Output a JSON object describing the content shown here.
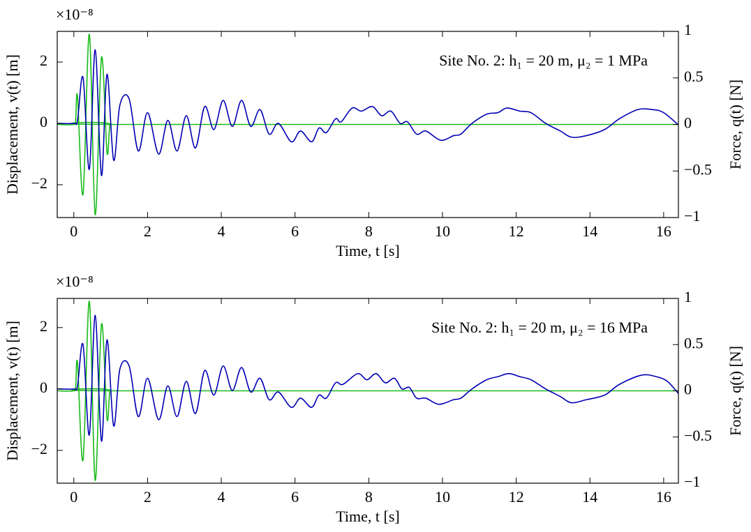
{
  "chart_data": [
    {
      "type": "line",
      "y_multiplier": "×10⁻⁸",
      "annotation": "Site No. 2: h₁ = 20 m, μ₂ = 1 MPa",
      "xlabel": "Time, t [s]",
      "ylabel": "Displacement, v(t) [m]",
      "y2label": "Force, q(t) [N]",
      "xlim": [
        -0.45,
        16.4
      ],
      "xticks": [
        0,
        2,
        4,
        6,
        8,
        10,
        12,
        14,
        16
      ],
      "ylim": [
        -3.07,
        3.0
      ],
      "yticks": [
        {
          "value": -2,
          "label": "−2"
        },
        0,
        2
      ],
      "y2lim": [
        -1,
        1
      ],
      "y2ticks": [
        {
          "value": -1,
          "label": "−1"
        },
        {
          "value": -0.5,
          "label": "−0.5"
        },
        0,
        0.5,
        1
      ],
      "series": [
        {
          "color": "#1aba1a",
          "axis": "y2",
          "x": [
            -0.45,
            0.0,
            0.05,
            0.1,
            0.25,
            0.42,
            0.58,
            0.75,
            0.9,
            0.98,
            1.1,
            16.4
          ],
          "values": [
            0,
            0,
            0.05,
            0.3,
            -0.75,
            0.97,
            -0.97,
            0.72,
            -0.3,
            0,
            0,
            0
          ]
        },
        {
          "color": "#0000b4",
          "x": [
            -0.45,
            0.0,
            0.1,
            0.25,
            0.42,
            0.58,
            0.75,
            0.9,
            1.08,
            1.25,
            1.5,
            1.75,
            2.0,
            2.3,
            2.55,
            2.8,
            3.05,
            3.3,
            3.55,
            3.8,
            4.05,
            4.3,
            4.55,
            4.8,
            5.05,
            5.3,
            5.55,
            5.9,
            6.15,
            6.45,
            6.65,
            6.85,
            7.1,
            7.25,
            7.55,
            7.8,
            8.1,
            8.35,
            8.6,
            8.85,
            9.05,
            9.3,
            9.55,
            9.95,
            10.3,
            10.5,
            10.8,
            11.2,
            11.5,
            11.75,
            12.1,
            12.4,
            12.8,
            13.2,
            13.5,
            13.9,
            14.4,
            14.8,
            15.3,
            15.7,
            16.0,
            16.4
          ],
          "values": [
            0,
            0,
            0.1,
            1.5,
            -1.5,
            2.4,
            -1.7,
            1.6,
            -1.2,
            0.6,
            0.8,
            -0.9,
            0.35,
            -1.0,
            0.1,
            -0.9,
            0.25,
            -0.8,
            0.55,
            -0.2,
            0.75,
            -0.1,
            0.75,
            -0.1,
            0.45,
            -0.35,
            0.0,
            -0.6,
            -0.25,
            -0.6,
            -0.15,
            -0.3,
            0.15,
            0.05,
            0.5,
            0.4,
            0.55,
            0.25,
            0.4,
            0.0,
            0.05,
            -0.35,
            -0.25,
            -0.55,
            -0.4,
            -0.35,
            0.0,
            0.3,
            0.35,
            0.5,
            0.4,
            0.35,
            0.0,
            -0.25,
            -0.45,
            -0.4,
            -0.2,
            0.15,
            0.45,
            0.45,
            0.35,
            -0.05
          ]
        }
      ]
    },
    {
      "type": "line",
      "y_multiplier": "×10⁻⁸",
      "annotation": "Site No. 2: h₁ = 20 m, μ₂ = 16 MPa",
      "xlabel": "Time, t [s]",
      "ylabel": "Displacement, v(t) [m]",
      "y2label": "Force, q(t) [N]",
      "xlim": [
        -0.45,
        16.4
      ],
      "xticks": [
        0,
        2,
        4,
        6,
        8,
        10,
        12,
        14,
        16
      ],
      "ylim": [
        -3.07,
        2.95
      ],
      "yticks": [
        {
          "value": -2,
          "label": "−2"
        },
        0,
        2
      ],
      "y2lim": [
        -1,
        1
      ],
      "y2ticks": [
        {
          "value": -1,
          "label": "−1"
        },
        {
          "value": -0.5,
          "label": "−0.5"
        },
        0,
        0.5,
        1
      ],
      "series": [
        {
          "color": "#1aba1a",
          "axis": "y2",
          "x": [
            -0.45,
            0.0,
            0.05,
            0.1,
            0.25,
            0.42,
            0.58,
            0.75,
            0.9,
            0.98,
            1.1,
            16.4
          ],
          "values": [
            0,
            0,
            0.05,
            0.3,
            -0.75,
            0.97,
            -0.97,
            0.72,
            -0.3,
            0,
            0,
            0
          ]
        },
        {
          "color": "#0000b4",
          "x": [
            -0.45,
            0.0,
            0.1,
            0.25,
            0.42,
            0.58,
            0.75,
            0.9,
            1.08,
            1.25,
            1.5,
            1.75,
            2.0,
            2.3,
            2.55,
            2.8,
            3.05,
            3.3,
            3.55,
            3.8,
            4.05,
            4.3,
            4.55,
            4.8,
            5.05,
            5.3,
            5.55,
            5.9,
            6.15,
            6.45,
            6.65,
            6.85,
            7.1,
            7.3,
            7.7,
            7.95,
            8.2,
            8.45,
            8.7,
            8.9,
            9.1,
            9.3,
            9.55,
            9.9,
            10.3,
            10.5,
            10.8,
            11.2,
            11.5,
            11.8,
            12.1,
            12.4,
            12.8,
            13.2,
            13.5,
            13.9,
            14.4,
            14.8,
            15.4,
            15.8,
            16.1,
            16.4
          ],
          "values": [
            0,
            0,
            0.1,
            1.45,
            -1.5,
            2.4,
            -1.7,
            1.6,
            -1.2,
            0.65,
            0.75,
            -0.9,
            0.35,
            -1.0,
            0.1,
            -0.9,
            0.25,
            -0.8,
            0.6,
            -0.2,
            0.75,
            -0.05,
            0.7,
            -0.1,
            0.35,
            -0.35,
            -0.1,
            -0.6,
            -0.3,
            -0.6,
            -0.2,
            -0.3,
            0.2,
            0.15,
            0.5,
            0.3,
            0.5,
            0.2,
            0.35,
            0.0,
            0.05,
            -0.3,
            -0.3,
            -0.5,
            -0.35,
            -0.3,
            0.0,
            0.3,
            0.4,
            0.5,
            0.4,
            0.3,
            0.0,
            -0.25,
            -0.45,
            -0.35,
            -0.2,
            0.15,
            0.45,
            0.4,
            0.25,
            -0.15
          ]
        }
      ]
    }
  ]
}
